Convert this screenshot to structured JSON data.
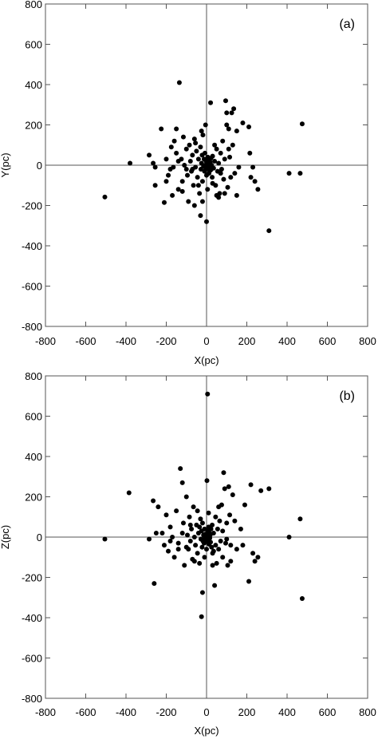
{
  "chart_data": [
    {
      "type": "scatter",
      "panel_label": "(a)",
      "xlabel": "X(pc)",
      "ylabel": "Y(pc)",
      "xlim": [
        -800,
        800
      ],
      "ylim": [
        -800,
        800
      ],
      "xticks": [
        "-800",
        "-600",
        "-400",
        "-200",
        "0",
        "200",
        "400",
        "600",
        "800"
      ],
      "yticks": [
        "800",
        "600",
        "400",
        "200",
        "0",
        "-200",
        "-400",
        "-600",
        "-800"
      ],
      "zero_lines": true,
      "grid": false,
      "marker_color": "#000000",
      "points": [
        [
          -505,
          -158
        ],
        [
          -380,
          10
        ],
        [
          -285,
          50
        ],
        [
          -265,
          10
        ],
        [
          -255,
          -10
        ],
        [
          -255,
          -100
        ],
        [
          -225,
          180
        ],
        [
          -210,
          -185
        ],
        [
          -200,
          -80
        ],
        [
          -190,
          -50
        ],
        [
          -175,
          90
        ],
        [
          -170,
          -150
        ],
        [
          -165,
          -10
        ],
        [
          -160,
          120
        ],
        [
          -150,
          60
        ],
        [
          -140,
          -120
        ],
        [
          -135,
          410
        ],
        [
          -125,
          30
        ],
        [
          -120,
          -80
        ],
        [
          -115,
          140
        ],
        [
          -110,
          0
        ],
        [
          -100,
          80
        ],
        [
          -95,
          -50
        ],
        [
          -90,
          -180
        ],
        [
          -85,
          100
        ],
        [
          -80,
          20
        ],
        [
          -75,
          -30
        ],
        [
          -70,
          50
        ],
        [
          -65,
          -100
        ],
        [
          -60,
          130
        ],
        [
          -55,
          -10
        ],
        [
          -50,
          70
        ],
        [
          -45,
          -60
        ],
        [
          -40,
          30
        ],
        [
          -35,
          -140
        ],
        [
          -30,
          90
        ],
        [
          -28,
          -20
        ],
        [
          -25,
          10
        ],
        [
          -22,
          50
        ],
        [
          -20,
          -80
        ],
        [
          -18,
          150
        ],
        [
          -15,
          -5
        ],
        [
          -12,
          30
        ],
        [
          -10,
          -30
        ],
        [
          -8,
          60
        ],
        [
          -6,
          0
        ],
        [
          -4,
          -15
        ],
        [
          -2,
          20
        ],
        [
          0,
          -50
        ],
        [
          2,
          10
        ],
        [
          4,
          -10
        ],
        [
          6,
          40
        ],
        [
          8,
          -20
        ],
        [
          10,
          5
        ],
        [
          12,
          -40
        ],
        [
          14,
          25
        ],
        [
          16,
          -5
        ],
        [
          18,
          15
        ],
        [
          20,
          -25
        ],
        [
          22,
          35
        ],
        [
          25,
          0
        ],
        [
          28,
          -60
        ],
        [
          30,
          45
        ],
        [
          35,
          -15
        ],
        [
          40,
          20
        ],
        [
          45,
          -100
        ],
        [
          50,
          80
        ],
        [
          55,
          -30
        ],
        [
          60,
          10
        ],
        [
          65,
          -140
        ],
        [
          70,
          60
        ],
        [
          75,
          -20
        ],
        [
          80,
          120
        ],
        [
          85,
          -70
        ],
        [
          90,
          30
        ],
        [
          95,
          320
        ],
        [
          100,
          260
        ],
        [
          105,
          -110
        ],
        [
          110,
          180
        ],
        [
          115,
          40
        ],
        [
          120,
          -60
        ],
        [
          125,
          260
        ],
        [
          130,
          100
        ],
        [
          135,
          280
        ],
        [
          140,
          -40
        ],
        [
          150,
          170
        ],
        [
          160,
          -10
        ],
        [
          180,
          210
        ],
        [
          210,
          190
        ],
        [
          215,
          60
        ],
        [
          220,
          -60
        ],
        [
          230,
          -10
        ],
        [
          240,
          -80
        ],
        [
          255,
          -120
        ],
        [
          310,
          -325
        ],
        [
          410,
          -40
        ],
        [
          465,
          -40
        ],
        [
          475,
          205
        ],
        [
          -30,
          -250
        ],
        [
          0,
          -280
        ],
        [
          -20,
          -180
        ],
        [
          20,
          310
        ],
        [
          50,
          -150
        ],
        [
          90,
          -140
        ],
        [
          -60,
          -200
        ],
        [
          60,
          -160
        ],
        [
          -100,
          -20
        ],
        [
          -140,
          20
        ],
        [
          -180,
          -20
        ],
        [
          -200,
          30
        ],
        [
          -40,
          -100
        ],
        [
          30,
          -90
        ],
        [
          40,
          100
        ],
        [
          -25,
          170
        ],
        [
          -5,
          200
        ],
        [
          5,
          -120
        ],
        [
          70,
          -40
        ],
        [
          -70,
          -20
        ],
        [
          -55,
          110
        ],
        [
          110,
          80
        ],
        [
          -120,
          -130
        ],
        [
          150,
          -150
        ],
        [
          -150,
          180
        ],
        [
          100,
          200
        ]
      ]
    },
    {
      "type": "scatter",
      "panel_label": "(b)",
      "xlabel": "X(pc)",
      "ylabel": "Z(pc)",
      "xlim": [
        -800,
        800
      ],
      "ylim": [
        -800,
        800
      ],
      "xticks": [
        "-800",
        "-600",
        "-400",
        "-200",
        "0",
        "200",
        "400",
        "600",
        "800"
      ],
      "yticks": [
        "800",
        "600",
        "400",
        "200",
        "0",
        "-200",
        "-400",
        "-600",
        "-800"
      ],
      "zero_lines": true,
      "grid": false,
      "marker_color": "#000000",
      "points": [
        [
          -505,
          -10
        ],
        [
          -385,
          220
        ],
        [
          -285,
          -10
        ],
        [
          -265,
          180
        ],
        [
          -260,
          -230
        ],
        [
          -250,
          20
        ],
        [
          -240,
          150
        ],
        [
          -220,
          20
        ],
        [
          -210,
          -40
        ],
        [
          -200,
          110
        ],
        [
          -190,
          -70
        ],
        [
          -180,
          50
        ],
        [
          -170,
          0
        ],
        [
          -160,
          -100
        ],
        [
          -150,
          130
        ],
        [
          -140,
          -30
        ],
        [
          -130,
          340
        ],
        [
          -120,
          270
        ],
        [
          -115,
          70
        ],
        [
          -110,
          -140
        ],
        [
          -100,
          200
        ],
        [
          -95,
          10
        ],
        [
          -90,
          -60
        ],
        [
          -85,
          100
        ],
        [
          -80,
          -20
        ],
        [
          -75,
          40
        ],
        [
          -70,
          -110
        ],
        [
          -65,
          150
        ],
        [
          -60,
          0
        ],
        [
          -55,
          -40
        ],
        [
          -50,
          60
        ],
        [
          -45,
          -80
        ],
        [
          -40,
          20
        ],
        [
          -35,
          -130
        ],
        [
          -30,
          90
        ],
        [
          -28,
          -10
        ],
        [
          -25,
          30
        ],
        [
          -22,
          -50
        ],
        [
          -20,
          70
        ],
        [
          -18,
          -20
        ],
        [
          -15,
          10
        ],
        [
          -12,
          -30
        ],
        [
          -10,
          40
        ],
        [
          -8,
          -5
        ],
        [
          -6,
          15
        ],
        [
          -4,
          -15
        ],
        [
          -2,
          5
        ],
        [
          0,
          -60
        ],
        [
          2,
          280
        ],
        [
          4,
          -20
        ],
        [
          6,
          30
        ],
        [
          8,
          -10
        ],
        [
          10,
          50
        ],
        [
          12,
          -35
        ],
        [
          14,
          20
        ],
        [
          16,
          -5
        ],
        [
          18,
          10
        ],
        [
          20,
          -25
        ],
        [
          22,
          40
        ],
        [
          25,
          -50
        ],
        [
          28,
          60
        ],
        [
          30,
          -80
        ],
        [
          35,
          20
        ],
        [
          40,
          -240
        ],
        [
          45,
          100
        ],
        [
          50,
          -130
        ],
        [
          55,
          40
        ],
        [
          60,
          -60
        ],
        [
          65,
          80
        ],
        [
          70,
          -20
        ],
        [
          75,
          160
        ],
        [
          80,
          -100
        ],
        [
          85,
          320
        ],
        [
          90,
          240
        ],
        [
          95,
          -30
        ],
        [
          100,
          70
        ],
        [
          105,
          -140
        ],
        [
          110,
          250
        ],
        [
          115,
          110
        ],
        [
          120,
          -40
        ],
        [
          130,
          210
        ],
        [
          140,
          80
        ],
        [
          150,
          -60
        ],
        [
          170,
          40
        ],
        [
          190,
          160
        ],
        [
          210,
          -220
        ],
        [
          220,
          260
        ],
        [
          230,
          -80
        ],
        [
          240,
          -120
        ],
        [
          255,
          -100
        ],
        [
          270,
          230
        ],
        [
          310,
          240
        ],
        [
          410,
          0
        ],
        [
          465,
          90
        ],
        [
          475,
          -305
        ],
        [
          -25,
          -395
        ],
        [
          5,
          710
        ],
        [
          -20,
          -275
        ],
        [
          -60,
          -120
        ],
        [
          30,
          -140
        ],
        [
          -140,
          -60
        ],
        [
          60,
          150
        ],
        [
          -100,
          -50
        ],
        [
          100,
          -10
        ],
        [
          -45,
          130
        ],
        [
          45,
          -40
        ],
        [
          -180,
          -20
        ],
        [
          180,
          -40
        ],
        [
          -80,
          60
        ],
        [
          80,
          30
        ],
        [
          -120,
          20
        ],
        [
          120,
          -120
        ],
        [
          -10,
          -100
        ],
        [
          10,
          120
        ],
        [
          -35,
          50
        ],
        [
          35,
          -70
        ]
      ]
    }
  ]
}
